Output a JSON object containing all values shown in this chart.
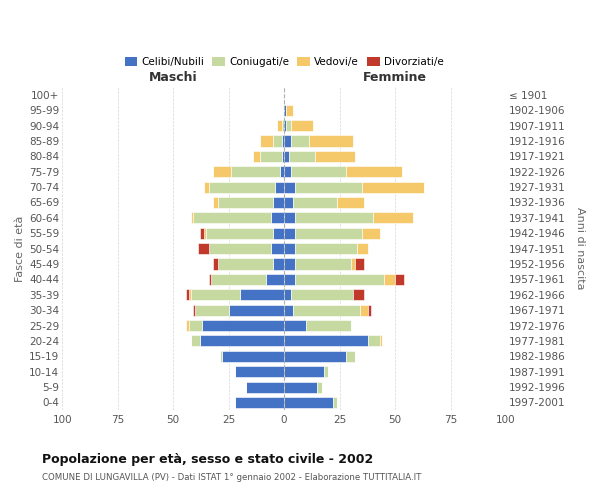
{
  "age_groups": [
    "0-4",
    "5-9",
    "10-14",
    "15-19",
    "20-24",
    "25-29",
    "30-34",
    "35-39",
    "40-44",
    "45-49",
    "50-54",
    "55-59",
    "60-64",
    "65-69",
    "70-74",
    "75-79",
    "80-84",
    "85-89",
    "90-94",
    "95-99",
    "100+"
  ],
  "birth_years": [
    "1997-2001",
    "1992-1996",
    "1987-1991",
    "1982-1986",
    "1977-1981",
    "1972-1976",
    "1967-1971",
    "1962-1966",
    "1957-1961",
    "1952-1956",
    "1947-1951",
    "1942-1946",
    "1937-1941",
    "1932-1936",
    "1927-1931",
    "1922-1926",
    "1917-1921",
    "1912-1916",
    "1907-1911",
    "1902-1906",
    "≤ 1901"
  ],
  "males_celibe": [
    22,
    17,
    22,
    28,
    38,
    37,
    25,
    20,
    8,
    5,
    6,
    5,
    6,
    5,
    4,
    2,
    1,
    1,
    0,
    0,
    0
  ],
  "males_coniug": [
    0,
    0,
    0,
    1,
    4,
    6,
    15,
    22,
    25,
    25,
    28,
    30,
    35,
    25,
    30,
    22,
    10,
    4,
    1,
    0,
    0
  ],
  "males_vedovo": [
    0,
    0,
    0,
    0,
    0,
    1,
    0,
    1,
    0,
    0,
    0,
    1,
    1,
    2,
    2,
    8,
    3,
    6,
    2,
    0,
    0
  ],
  "males_divorz": [
    0,
    0,
    0,
    0,
    0,
    0,
    1,
    1,
    1,
    2,
    5,
    2,
    0,
    0,
    0,
    0,
    0,
    0,
    0,
    0,
    0
  ],
  "females_nubile": [
    22,
    15,
    18,
    28,
    38,
    10,
    4,
    3,
    5,
    5,
    5,
    5,
    5,
    4,
    5,
    3,
    2,
    3,
    1,
    1,
    0
  ],
  "females_coniug": [
    2,
    2,
    2,
    4,
    5,
    20,
    30,
    28,
    40,
    25,
    28,
    30,
    35,
    20,
    30,
    25,
    12,
    8,
    2,
    0,
    0
  ],
  "females_vedova": [
    0,
    0,
    0,
    0,
    1,
    0,
    4,
    0,
    5,
    2,
    5,
    8,
    18,
    12,
    28,
    25,
    18,
    20,
    10,
    3,
    0
  ],
  "females_divorz": [
    0,
    0,
    0,
    0,
    0,
    0,
    1,
    5,
    4,
    4,
    0,
    0,
    0,
    0,
    0,
    0,
    0,
    0,
    0,
    0,
    0
  ],
  "color_celibe": "#4472C4",
  "color_coniug": "#c5d9a0",
  "color_vedov": "#f5c96a",
  "color_divorz": "#c0392b",
  "xlim": 100,
  "title": "Popolazione per età, sesso e stato civile - 2002",
  "subtitle": "COMUNE DI LUNGAVILLA (PV) - Dati ISTAT 1° gennaio 2002 - Elaborazione TUTTITALIA.IT",
  "ylabel_left": "Fasce di età",
  "ylabel_right": "Anni di nascita",
  "label_maschi": "Maschi",
  "label_femmine": "Femmine",
  "legend_labels": [
    "Celibi/Nubili",
    "Coniugati/e",
    "Vedovi/e",
    "Divorziati/e"
  ],
  "bg_color": "#ffffff",
  "grid_color": "#cccccc"
}
